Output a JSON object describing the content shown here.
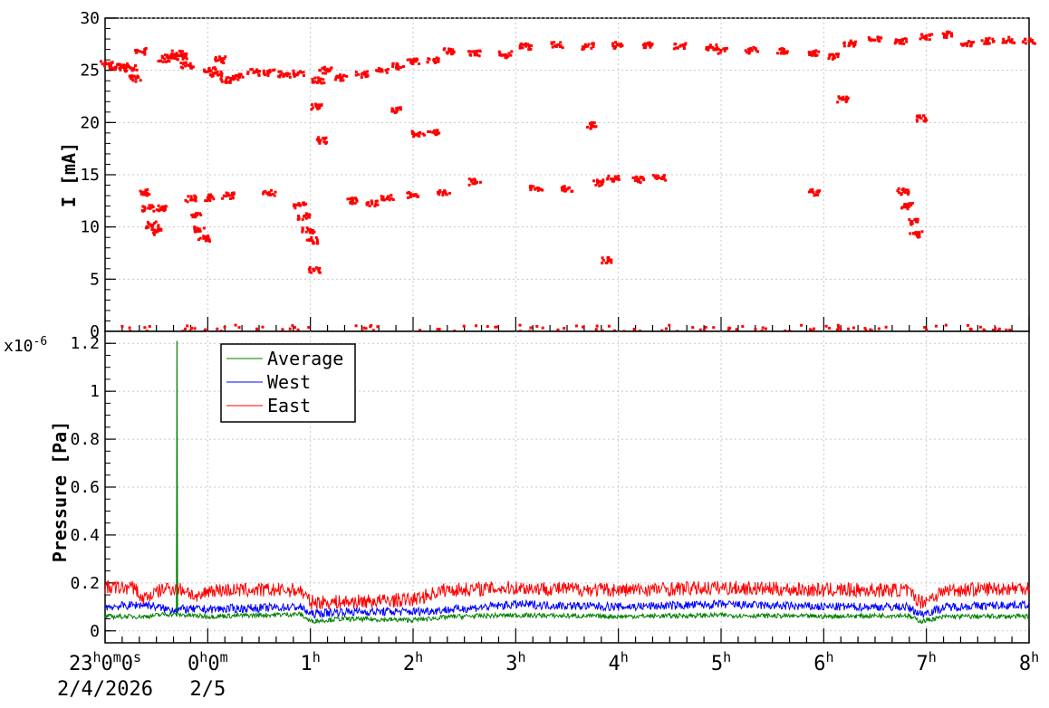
{
  "chart_data": [
    {
      "type": "scatter",
      "ylabel": "I [mA]",
      "ylim": [
        0,
        30
      ],
      "yticks": [
        "0",
        "5",
        "10",
        "15",
        "20",
        "25",
        "30"
      ],
      "ytick_values": [
        0,
        5,
        10,
        15,
        20,
        25,
        30
      ],
      "xlim_hours": [
        -1,
        8
      ],
      "grid": true,
      "color": "#ff0000",
      "series": [
        {
          "points": [
            [
              -0.98,
              25.6
            ],
            [
              -0.9,
              25.3
            ],
            [
              -0.82,
              25.4
            ],
            [
              -0.75,
              25.2
            ],
            [
              -0.7,
              24.2
            ],
            [
              -0.66,
              26.8
            ],
            [
              -0.62,
              13.3
            ],
            [
              -0.58,
              11.8
            ],
            [
              -0.54,
              10.2
            ],
            [
              -0.51,
              9.5
            ],
            [
              -0.46,
              11.8
            ],
            [
              -0.42,
              26.1
            ],
            [
              -0.36,
              26.4
            ],
            [
              -0.3,
              26.6
            ],
            [
              -0.24,
              26.3
            ],
            [
              -0.2,
              25.5
            ],
            [
              -0.16,
              12.7
            ],
            [
              -0.12,
              11.1
            ],
            [
              -0.08,
              9.8
            ],
            [
              -0.04,
              8.9
            ],
            [
              0.0,
              12.8
            ],
            [
              0.02,
              25.0
            ],
            [
              0.08,
              24.7
            ],
            [
              0.12,
              26.0
            ],
            [
              0.18,
              24.1
            ],
            [
              0.3,
              24.4
            ],
            [
              0.45,
              24.8
            ],
            [
              0.6,
              24.8
            ],
            [
              0.75,
              24.6
            ],
            [
              0.88,
              24.7
            ],
            [
              0.9,
              12.1
            ],
            [
              0.94,
              11.0
            ],
            [
              0.98,
              9.7
            ],
            [
              1.02,
              8.7
            ],
            [
              1.04,
              5.9
            ],
            [
              1.06,
              21.5
            ],
            [
              1.08,
              24.0
            ],
            [
              1.15,
              25.0
            ],
            [
              1.3,
              24.3
            ],
            [
              1.5,
              24.6
            ],
            [
              1.7,
              25.0
            ],
            [
              1.85,
              25.4
            ],
            [
              2.0,
              25.8
            ],
            [
              2.2,
              26.0
            ],
            [
              2.35,
              26.8
            ],
            [
              2.6,
              26.6
            ],
            [
              2.9,
              26.5
            ],
            [
              3.1,
              27.3
            ],
            [
              3.4,
              27.4
            ],
            [
              3.7,
              27.3
            ],
            [
              4.0,
              27.4
            ],
            [
              4.3,
              27.4
            ],
            [
              4.6,
              27.3
            ],
            [
              4.9,
              27.2
            ],
            [
              5.0,
              26.9
            ],
            [
              5.3,
              26.9
            ],
            [
              5.6,
              26.8
            ],
            [
              5.9,
              26.6
            ],
            [
              6.1,
              26.3
            ],
            [
              6.18,
              22.2
            ],
            [
              6.25,
              27.6
            ],
            [
              6.5,
              27.9
            ],
            [
              6.75,
              27.8
            ],
            [
              6.78,
              13.4
            ],
            [
              6.82,
              12.0
            ],
            [
              6.86,
              10.5
            ],
            [
              6.9,
              9.3
            ],
            [
              6.95,
              20.4
            ],
            [
              7.0,
              28.2
            ],
            [
              7.2,
              28.4
            ],
            [
              7.4,
              27.6
            ],
            [
              7.6,
              27.8
            ],
            [
              7.8,
              27.9
            ],
            [
              8.0,
              27.8
            ],
            [
              1.4,
              12.5
            ],
            [
              1.6,
              12.2
            ],
            [
              1.75,
              12.8
            ],
            [
              2.0,
              13.1
            ],
            [
              2.3,
              13.3
            ],
            [
              2.6,
              14.3
            ],
            [
              3.2,
              13.7
            ],
            [
              3.5,
              13.6
            ],
            [
              3.8,
              14.2
            ],
            [
              3.95,
              14.6
            ],
            [
              4.2,
              14.5
            ],
            [
              4.4,
              14.7
            ],
            [
              5.9,
              13.3
            ],
            [
              0.6,
              13.3
            ],
            [
              3.9,
              6.8
            ],
            [
              3.75,
              19.7
            ],
            [
              1.85,
              21.2
            ],
            [
              2.05,
              18.9
            ],
            [
              2.2,
              19.1
            ],
            [
              1.1,
              18.3
            ],
            [
              0.2,
              13.0
            ]
          ]
        }
      ]
    },
    {
      "type": "line",
      "ylabel": "Pressure [Pa]",
      "multiplier": "x10",
      "multiplier_exp": "-6",
      "ylim": [
        -0.05,
        1.25
      ],
      "yticks": [
        "0",
        "0.2",
        "0.4",
        "0.6",
        "0.8",
        "1",
        "1.2"
      ],
      "ytick_values": [
        0,
        0.2,
        0.4,
        0.6,
        0.8,
        1.0,
        1.2
      ],
      "xlim_hours": [
        -1,
        8
      ],
      "grid": true,
      "legend_placement": "top-left",
      "series": [
        {
          "name": "Average",
          "color": "#008000",
          "base": [
            [
              -1,
              0.06
            ],
            [
              -0.6,
              0.06
            ],
            [
              -0.4,
              0.07
            ],
            [
              0,
              0.06
            ],
            [
              0.9,
              0.07
            ],
            [
              1.0,
              0.04
            ],
            [
              1.3,
              0.05
            ],
            [
              2.0,
              0.045
            ],
            [
              2.4,
              0.06
            ],
            [
              3.0,
              0.065
            ],
            [
              4.0,
              0.06
            ],
            [
              5.0,
              0.065
            ],
            [
              6.0,
              0.06
            ],
            [
              6.8,
              0.065
            ],
            [
              6.95,
              0.04
            ],
            [
              7.2,
              0.06
            ],
            [
              8.0,
              0.06
            ]
          ],
          "noise": 0.01,
          "spike_hour": -0.3,
          "spike_value": 1.21
        },
        {
          "name": "West",
          "color": "#0000ff",
          "base": [
            [
              -1,
              0.1
            ],
            [
              -0.6,
              0.11
            ],
            [
              -0.4,
              0.09
            ],
            [
              0,
              0.09
            ],
            [
              0.9,
              0.1
            ],
            [
              1.0,
              0.07
            ],
            [
              1.3,
              0.08
            ],
            [
              2.0,
              0.08
            ],
            [
              2.4,
              0.09
            ],
            [
              3.0,
              0.11
            ],
            [
              4.0,
              0.1
            ],
            [
              5.0,
              0.11
            ],
            [
              6.0,
              0.1
            ],
            [
              6.8,
              0.1
            ],
            [
              6.95,
              0.07
            ],
            [
              7.2,
              0.1
            ],
            [
              8.0,
              0.11
            ]
          ],
          "noise": 0.018
        },
        {
          "name": "East",
          "color": "#ff0000",
          "base": [
            [
              -1,
              0.18
            ],
            [
              -0.7,
              0.18
            ],
            [
              -0.65,
              0.13
            ],
            [
              -0.4,
              0.18
            ],
            [
              -0.2,
              0.17
            ],
            [
              -0.1,
              0.13
            ],
            [
              0,
              0.17
            ],
            [
              0.9,
              0.17
            ],
            [
              1.0,
              0.12
            ],
            [
              1.3,
              0.12
            ],
            [
              2.0,
              0.13
            ],
            [
              2.3,
              0.17
            ],
            [
              3.0,
              0.18
            ],
            [
              4.0,
              0.17
            ],
            [
              5.0,
              0.18
            ],
            [
              6.0,
              0.17
            ],
            [
              6.8,
              0.17
            ],
            [
              6.95,
              0.12
            ],
            [
              7.2,
              0.17
            ],
            [
              8.0,
              0.18
            ]
          ],
          "noise": 0.03
        }
      ]
    }
  ],
  "x_axis": {
    "labels": [
      {
        "hour": -1,
        "main": "23",
        "parts": [
          [
            "h",
            "sup"
          ],
          [
            "0",
            ""
          ],
          [
            "m",
            "sup"
          ],
          [
            "0",
            ""
          ],
          [
            "s",
            "sup"
          ]
        ]
      },
      {
        "hour": 0,
        "main": "0",
        "parts": [
          [
            "h",
            "sup"
          ],
          [
            "0",
            ""
          ],
          [
            "m",
            "sup"
          ]
        ]
      },
      {
        "hour": 1,
        "main": "1",
        "parts": [
          [
            "h",
            "sup"
          ]
        ]
      },
      {
        "hour": 2,
        "main": "2",
        "parts": [
          [
            "h",
            "sup"
          ]
        ]
      },
      {
        "hour": 3,
        "main": "3",
        "parts": [
          [
            "h",
            "sup"
          ]
        ]
      },
      {
        "hour": 4,
        "main": "4",
        "parts": [
          [
            "h",
            "sup"
          ]
        ]
      },
      {
        "hour": 5,
        "main": "5",
        "parts": [
          [
            "h",
            "sup"
          ]
        ]
      },
      {
        "hour": 6,
        "main": "6",
        "parts": [
          [
            "h",
            "sup"
          ]
        ]
      },
      {
        "hour": 7,
        "main": "7",
        "parts": [
          [
            "h",
            "sup"
          ]
        ]
      },
      {
        "hour": 8,
        "main": "8",
        "parts": [
          [
            "h",
            "sup"
          ]
        ]
      }
    ],
    "dates": [
      {
        "hour": -1,
        "text": "2/4/2026"
      },
      {
        "hour": 0,
        "text": "2/5"
      }
    ]
  }
}
